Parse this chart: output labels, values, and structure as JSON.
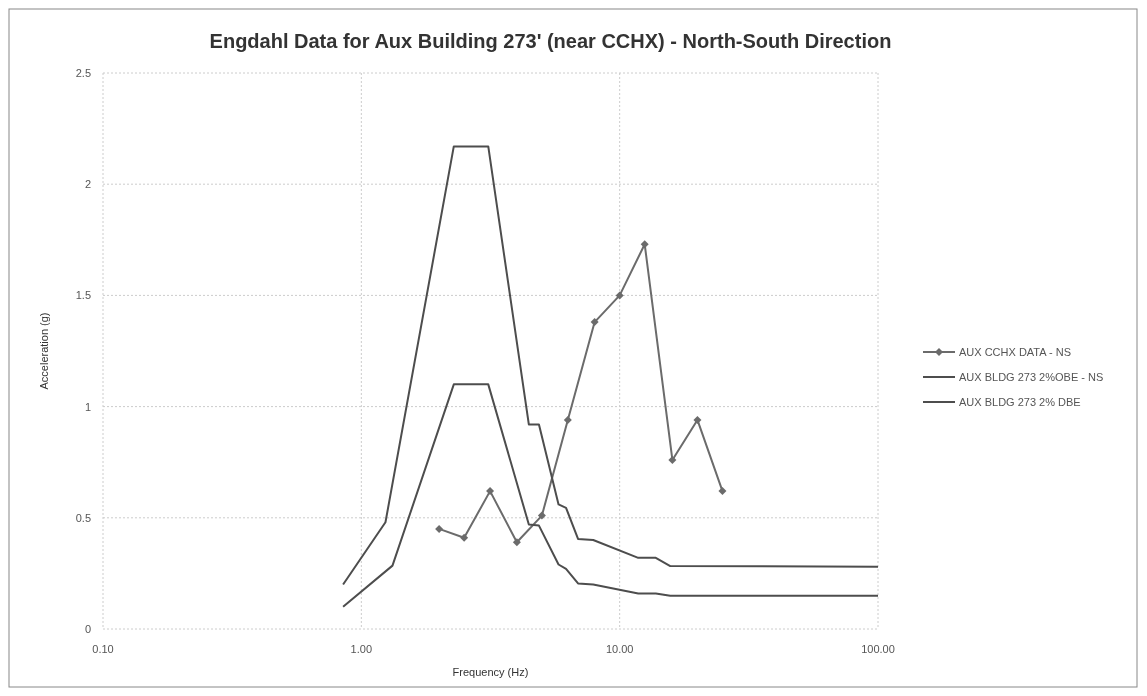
{
  "chart_data": {
    "type": "line",
    "title": "Engdahl Data for Aux Building 273' (near CCHX) - North-South Direction",
    "xlabel": "Frequency (Hz)",
    "ylabel": "Acceleration (g)",
    "log": "x",
    "xlim": [
      0.1,
      100
    ],
    "xticks": [
      {
        "value": 0.1,
        "label": "0.10"
      },
      {
        "value": 1,
        "label": "1.00"
      },
      {
        "value": 10,
        "label": "10.00"
      },
      {
        "value": 100,
        "label": "100.00"
      }
    ],
    "ylim": [
      0,
      2.5
    ],
    "yticks": [
      0,
      0.5,
      1,
      1.5,
      2,
      2.5
    ],
    "grid": true,
    "legend": "right",
    "series": [
      {
        "name": "AUX CCHX DATA - NS",
        "color": "#6b6b6b",
        "marker": "diamond",
        "x": [
          2,
          2.5,
          3.15,
          4,
          5,
          6.3,
          8,
          10,
          12.5,
          16,
          20,
          25
        ],
        "values": [
          0.45,
          0.41,
          0.62,
          0.39,
          0.51,
          0.94,
          1.38,
          1.5,
          1.73,
          0.76,
          0.94,
          0.62
        ]
      },
      {
        "name": "AUX BLDG 273 2%OBE - NS",
        "color": "#4d4d4d",
        "marker": "none",
        "x": [
          0.85,
          1.32,
          2.28,
          3.1,
          4.45,
          4.87,
          5.8,
          6.2,
          6.9,
          7.9,
          11.8,
          13.8,
          15.7,
          100
        ],
        "values": [
          0.1,
          0.285,
          1.1,
          1.1,
          0.47,
          0.465,
          0.29,
          0.27,
          0.205,
          0.2,
          0.16,
          0.16,
          0.15,
          0.15
        ]
      },
      {
        "name": "AUX BLDG 273 2% DBE",
        "color": "#4d4d4d",
        "marker": "none",
        "x": [
          0.85,
          1.24,
          2.28,
          3.1,
          4.45,
          4.87,
          5.8,
          6.2,
          6.9,
          7.9,
          11.8,
          13.8,
          15.7,
          100
        ],
        "values": [
          0.2,
          0.48,
          2.17,
          2.17,
          0.92,
          0.92,
          0.56,
          0.545,
          0.405,
          0.4,
          0.32,
          0.32,
          0.283,
          0.28
        ]
      }
    ]
  }
}
